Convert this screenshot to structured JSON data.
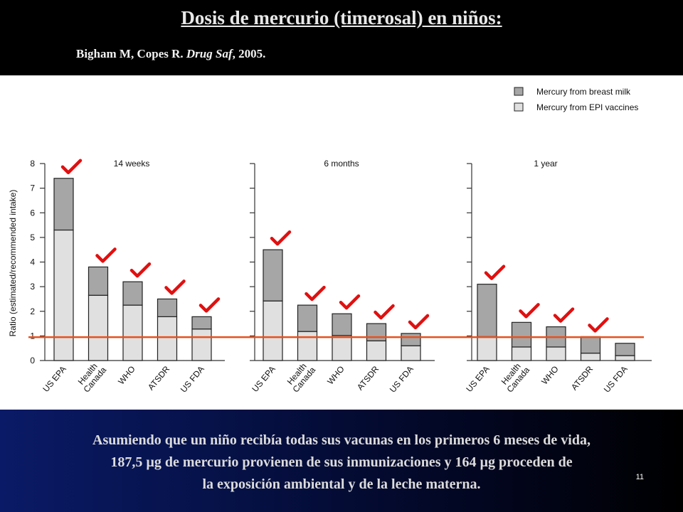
{
  "header": {
    "title": "Dosis de mercurio (timerosal) en niños:",
    "citation_prefix": "Bigham M, Copes R. ",
    "citation_journal": "Drug Saf",
    "citation_suffix": ", 2005."
  },
  "footer": {
    "caption_line1": "Asumiendo que un niño recibía todas sus vacunas en los primeros 6 meses de vida,",
    "caption_line2": "187,5 µg de mercurio provienen de sus inmunizaciones y 164 µg proceden de",
    "caption_line3": "la exposición ambiental y de la leche materna.",
    "slide_number": "11"
  },
  "colors": {
    "breast_milk": "#a6a6a6",
    "vaccines": "#e0e0e0",
    "reference_line": "#e8501e",
    "checkmark": "#e01010"
  },
  "chart_data": {
    "type": "bar",
    "stacked": true,
    "ylabel": "Ratio (estimated/recommended intake)",
    "ylim": [
      0,
      8
    ],
    "yticks": [
      "0",
      "1",
      "2",
      "3",
      "4",
      "5",
      "6",
      "7",
      "8"
    ],
    "reference_line": 0.95,
    "legend": {
      "position": "top-right",
      "entries": [
        "Mercury from breast milk",
        "Mercury  from EPI vaccines"
      ]
    },
    "categories": [
      "US EPA",
      "Health Canada",
      "WHO",
      "ATSDR",
      "US FDA"
    ],
    "category_lines": [
      [
        "US EPA"
      ],
      [
        "Health",
        "Canada"
      ],
      [
        "WHO"
      ],
      [
        "ATSDR"
      ],
      [
        "US FDA"
      ]
    ],
    "panels": [
      {
        "title": "14 weeks",
        "vaccines": [
          5.3,
          2.65,
          2.25,
          1.78,
          1.28
        ],
        "breast_milk": [
          2.1,
          1.15,
          0.95,
          0.72,
          0.5
        ],
        "checked": [
          true,
          true,
          true,
          true,
          true
        ]
      },
      {
        "title": "6 months",
        "vaccines": [
          2.42,
          1.18,
          1.02,
          0.8,
          0.6
        ],
        "breast_milk": [
          2.08,
          1.07,
          0.88,
          0.7,
          0.5
        ],
        "checked": [
          true,
          true,
          true,
          true,
          true
        ]
      },
      {
        "title": "1 year",
        "vaccines": [
          0.97,
          0.55,
          0.55,
          0.3,
          0.2
        ],
        "breast_milk": [
          2.13,
          1.0,
          0.82,
          0.67,
          0.5
        ],
        "checked": [
          true,
          true,
          true,
          true,
          false
        ]
      }
    ]
  }
}
